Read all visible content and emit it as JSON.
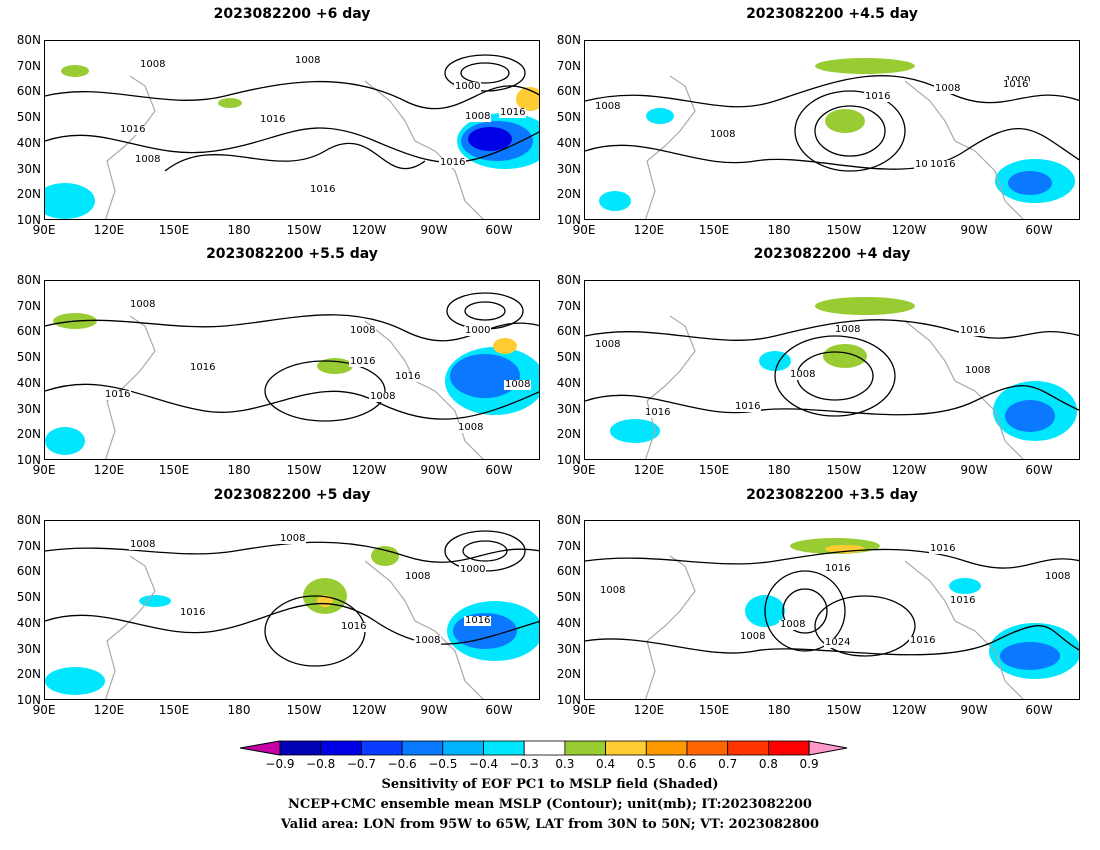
{
  "panels": [
    {
      "title": "2023082200  +6 day",
      "contour_labels": [
        "1008",
        "1008",
        "1016",
        "1016",
        "1008",
        "1016",
        "1016",
        "1008",
        "1000",
        "1016"
      ]
    },
    {
      "title": "2023082200  +4.5 day",
      "contour_labels": [
        "1008",
        "1016",
        "1008",
        "1016",
        "1008",
        "1000",
        "1016",
        "1016"
      ]
    },
    {
      "title": "2023082200  +5.5 day",
      "contour_labels": [
        "1008",
        "1008",
        "1016",
        "1016",
        "1008",
        "1000",
        "1016",
        "1008",
        "1016",
        "1008"
      ]
    },
    {
      "title": "2023082200  +4 day",
      "contour_labels": [
        "1008",
        "1008",
        "1016",
        "1016",
        "1008",
        "1016",
        "1008"
      ]
    },
    {
      "title": "2023082200  +5 day",
      "contour_labels": [
        "1008",
        "1016",
        "1008",
        "1008",
        "1016",
        "1000",
        "1008",
        "1016"
      ]
    },
    {
      "title": "2023082200  +3.5 day",
      "contour_labels": [
        "1008",
        "1008",
        "1016",
        "1008",
        "1024",
        "1016",
        "1016",
        "1008",
        "1016"
      ]
    }
  ],
  "axes": {
    "lat_labels": [
      "80N",
      "70N",
      "60N",
      "50N",
      "40N",
      "30N",
      "20N",
      "10N"
    ],
    "lon_labels": [
      "90E",
      "120E",
      "150E",
      "180",
      "150W",
      "120W",
      "90W",
      "60W"
    ]
  },
  "colorbar": {
    "labels": [
      "-0.9",
      "-0.8",
      "-0.7",
      "-0.6",
      "-0.5",
      "-0.4",
      "-0.3",
      "0.3",
      "0.4",
      "0.5",
      "0.6",
      "0.7",
      "0.8",
      "0.9"
    ],
    "colors": [
      "#c400a6",
      "#0000b4",
      "#0000e6",
      "#0a3cff",
      "#0a78ff",
      "#00b4ff",
      "#00e6ff",
      "#ffffff",
      "#99cc33",
      "#ffcc33",
      "#ff9900",
      "#ff6600",
      "#ff3300",
      "#ff0000",
      "#ff99cc"
    ]
  },
  "footer": {
    "line1": "Sensitivity of EOF PC1 to MSLP field (Shaded)",
    "line2": "NCEP+CMC ensemble mean MSLP (Contour); unit(mb); IT:2023082200",
    "line3": "Valid area: LON from 95W to 65W, LAT from 30N to 50N; VT: 2023082800"
  }
}
